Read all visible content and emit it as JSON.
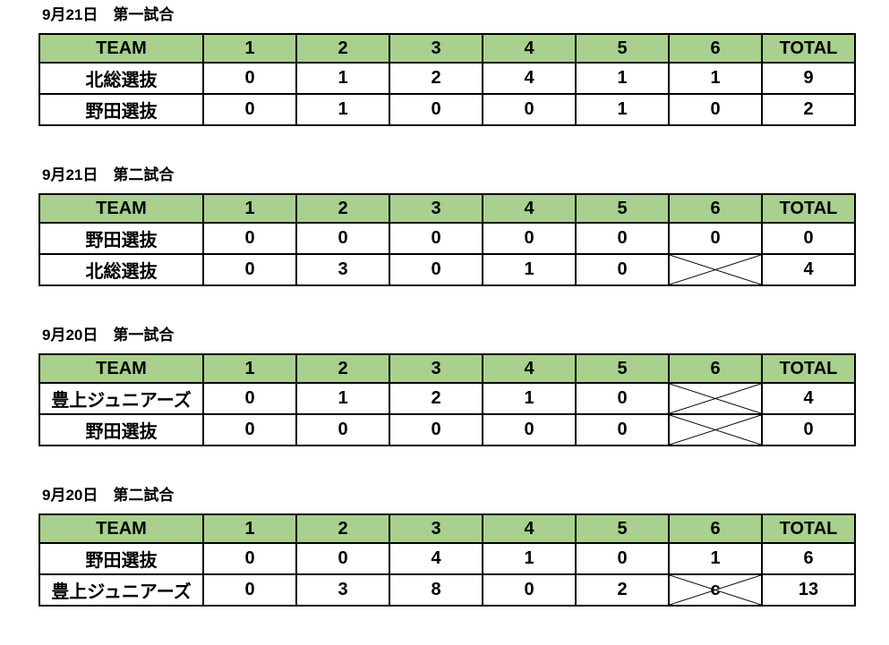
{
  "page": {
    "background": "#ffffff"
  },
  "colors": {
    "header_bg": "#a9d08e",
    "border": "#000000",
    "text": "#000000",
    "cell_bg": "#ffffff"
  },
  "columns": [
    "TEAM",
    "1",
    "2",
    "3",
    "4",
    "5",
    "6",
    "TOTAL"
  ],
  "tables": [
    {
      "title": "9月21日　第一試合",
      "rows": [
        {
          "team": "北総選抜",
          "scores": [
            "0",
            "1",
            "2",
            "4",
            "1",
            "1"
          ],
          "total": "9",
          "crossed": []
        },
        {
          "team": "野田選抜",
          "scores": [
            "0",
            "1",
            "0",
            "0",
            "1",
            "0"
          ],
          "total": "2",
          "crossed": []
        }
      ]
    },
    {
      "title": "9月21日　第二試合",
      "rows": [
        {
          "team": "野田選抜",
          "scores": [
            "0",
            "0",
            "0",
            "0",
            "0",
            "0"
          ],
          "total": "0",
          "crossed": []
        },
        {
          "team": "北総選抜",
          "scores": [
            "0",
            "3",
            "0",
            "1",
            "0",
            ""
          ],
          "total": "4",
          "crossed": [
            5
          ]
        }
      ]
    },
    {
      "title": "9月20日　第一試合",
      "rows": [
        {
          "team": "豊上ジュニアーズ",
          "scores": [
            "0",
            "1",
            "2",
            "1",
            "0",
            ""
          ],
          "total": "4",
          "crossed": [
            5
          ]
        },
        {
          "team": "野田選抜",
          "scores": [
            "0",
            "0",
            "0",
            "0",
            "0",
            ""
          ],
          "total": "0",
          "crossed": [
            5
          ]
        }
      ]
    },
    {
      "title": "9月20日　第二試合",
      "rows": [
        {
          "team": "野田選抜",
          "scores": [
            "0",
            "0",
            "4",
            "1",
            "0",
            "1"
          ],
          "total": "6",
          "crossed": []
        },
        {
          "team": "豊上ジュニアーズ",
          "scores": [
            "0",
            "3",
            "8",
            "0",
            "2",
            "c"
          ],
          "total": "13",
          "crossed": [
            5
          ]
        }
      ]
    }
  ]
}
